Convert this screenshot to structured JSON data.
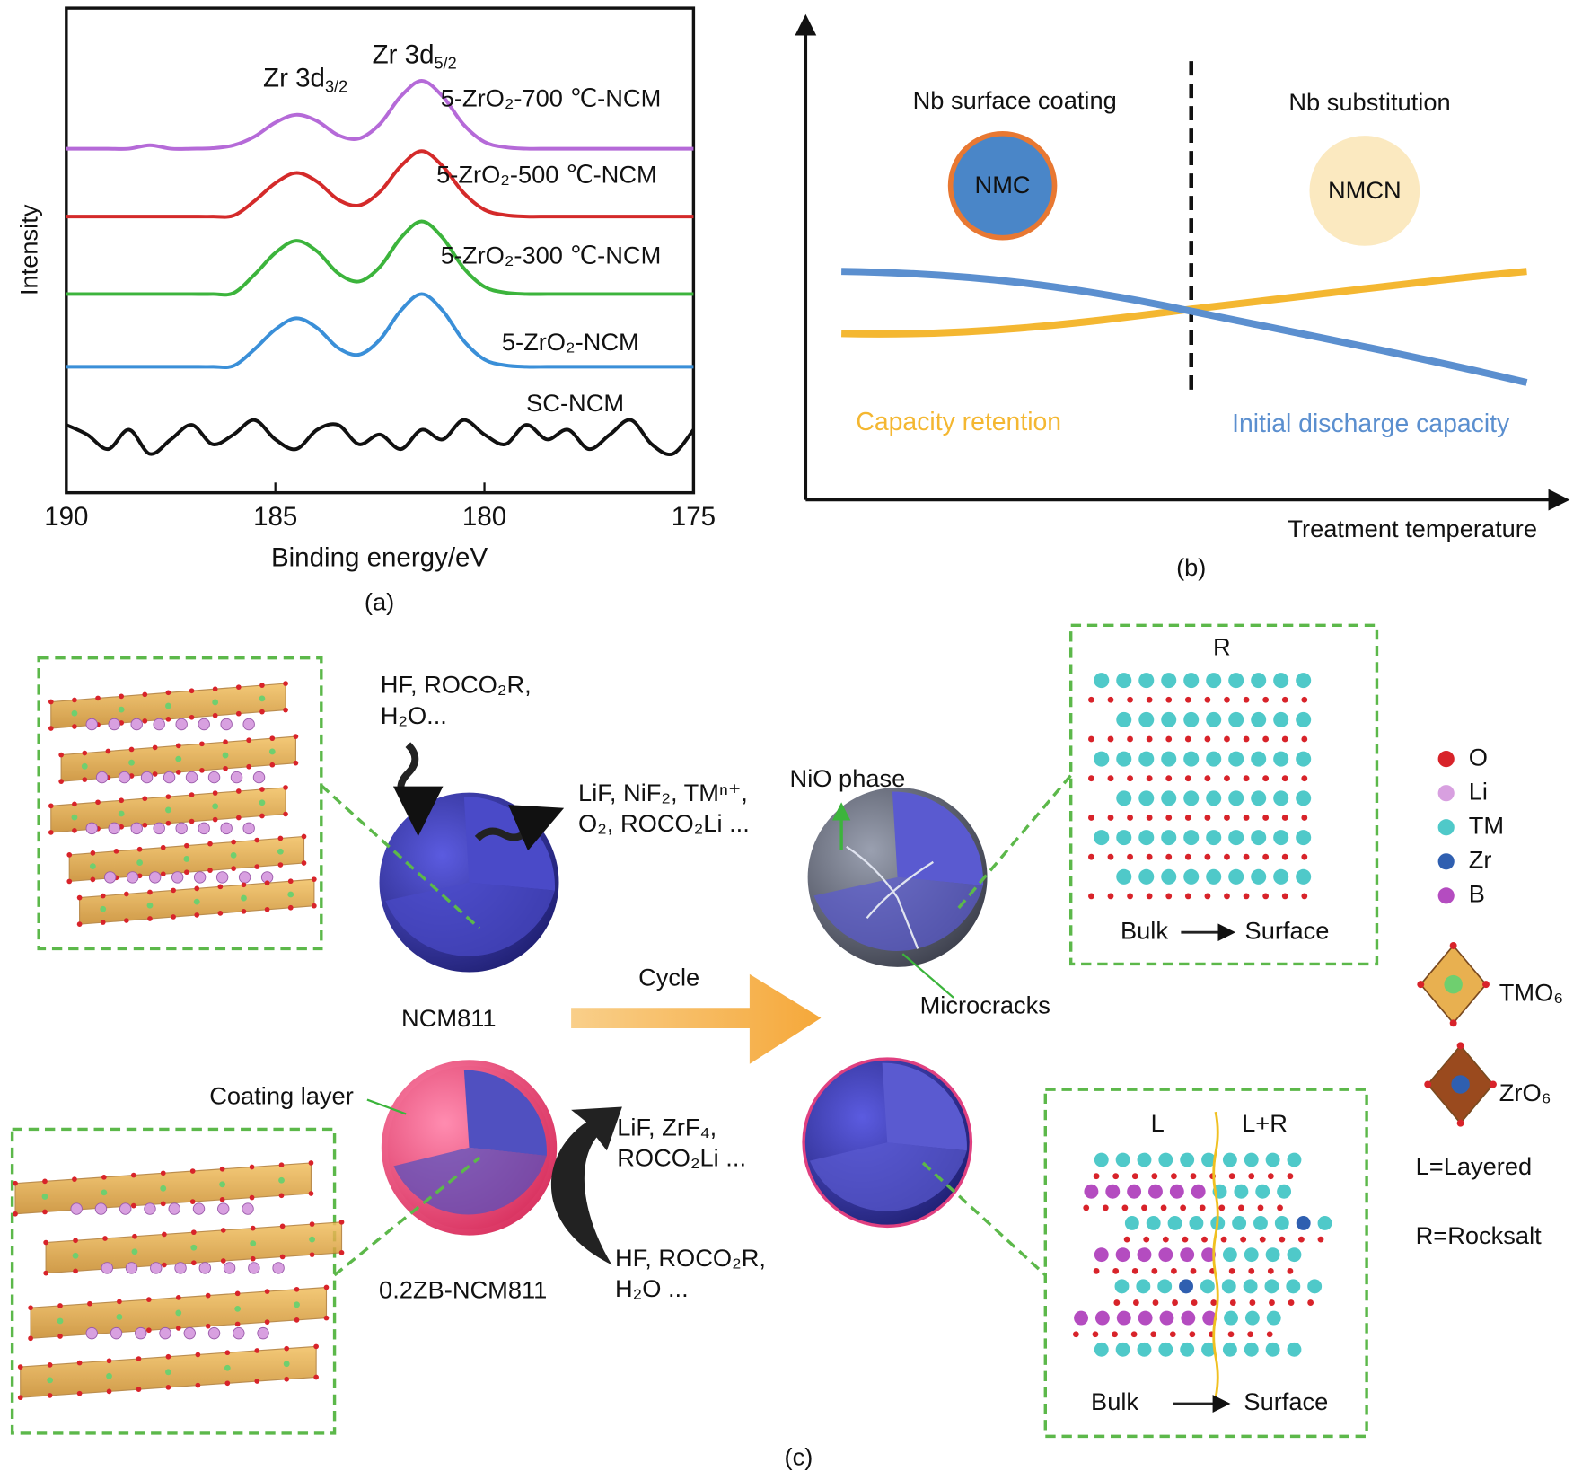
{
  "chart_data": {
    "type": "line",
    "x_label": "Binding energy/eV",
    "y_label": "Intensity",
    "caption": "(a)",
    "annotations": [
      {
        "text": "Zr 3d",
        "sub": "3/2"
      },
      {
        "text": "Zr 3d",
        "sub": "5/2"
      }
    ],
    "x": [
      190,
      189.5,
      189,
      188.5,
      188,
      187.5,
      187,
      186.5,
      186,
      185.5,
      185,
      184.5,
      184,
      183.5,
      183,
      182.5,
      182,
      181.5,
      181,
      180.5,
      180,
      179.5,
      179,
      178.5,
      178,
      177.5,
      177,
      176.5,
      176,
      175.5,
      175
    ],
    "xlim": [
      190,
      175
    ],
    "xticks": [
      190,
      185,
      180,
      175
    ],
    "ylim": [
      0,
      100
    ],
    "series": [
      {
        "name": "5-ZrO₂-700 ℃-NCM",
        "color": "#b56ad8",
        "values": [
          71,
          71,
          71,
          71,
          71.7,
          71,
          71,
          71.1,
          71.7,
          73.5,
          76.4,
          78,
          76.7,
          73.8,
          73.1,
          76.1,
          81.8,
          85,
          81.8,
          76,
          72.4,
          71.3,
          71,
          71,
          71,
          71,
          71,
          71,
          71,
          71,
          71
        ]
      },
      {
        "name": "5-ZrO₂-500 ℃-NCM",
        "color": "#d42a2a",
        "values": [
          57,
          57,
          57,
          57,
          57,
          57,
          57,
          57,
          57.2,
          60.2,
          63.9,
          66,
          64.2,
          60.5,
          59.3,
          62.1,
          67.4,
          70.5,
          67.4,
          61.9,
          58.4,
          57.3,
          57,
          57,
          57,
          57,
          57,
          57,
          57,
          57,
          57
        ]
      },
      {
        "name": "5-ZrO₂-300 ℃-NCM",
        "color": "#3cb43c",
        "values": [
          41,
          41,
          41,
          41,
          41,
          41,
          41,
          41,
          41.2,
          45,
          49.5,
          52,
          49.8,
          45.3,
          43.6,
          46.6,
          52.6,
          56,
          52.6,
          46.4,
          42.5,
          41.3,
          41,
          41,
          41,
          41,
          41,
          41,
          41,
          41,
          41
        ]
      },
      {
        "name": "5-ZrO₂-NCM",
        "color": "#3a8fd8",
        "values": [
          26,
          26,
          26,
          26,
          26,
          26,
          26,
          26,
          26.2,
          29.6,
          33.7,
          36,
          34,
          29.9,
          28.5,
          31.6,
          37.6,
          41,
          37.6,
          31.4,
          27.5,
          26.3,
          26,
          26,
          26,
          26,
          26,
          26,
          26,
          26,
          26
        ]
      },
      {
        "name": "SC-NCM",
        "color": "#111111",
        "values": [
          14,
          12,
          9,
          13,
          8,
          11,
          14,
          10,
          12,
          15,
          11,
          9,
          13,
          14,
          10,
          12,
          9,
          13,
          11,
          15,
          12,
          10,
          14,
          11,
          13,
          9,
          12,
          15,
          10,
          8,
          13
        ]
      }
    ]
  },
  "panel_b": {
    "caption": "(b)",
    "x_label": "Treatment temperature",
    "left_title": "Nb surface coating",
    "right_title": "Nb substitution",
    "left_particle": "NMC",
    "right_particle": "NMCN",
    "curves": [
      {
        "name": "Capacity retention",
        "color": "#f4b731"
      },
      {
        "name": "Initial discharge capacity",
        "color": "#5b8fcf"
      }
    ]
  },
  "panel_c": {
    "caption": "(c)",
    "reactants_top": [
      "HF, ROCO₂R,",
      "H₂O..."
    ],
    "products_top": [
      "LiF, NiF₂, TMⁿ⁺,",
      "O₂, ROCO₂Li ..."
    ],
    "nio": "NiO phase",
    "particle_top": "NCM811",
    "cycle": "Cycle",
    "microcracks": "Microcracks",
    "coating": "Coating layer",
    "particle_bottom": "0.2ZB-NCM811",
    "products_bottom": [
      "LiF, ZrF₄,",
      "ROCO₂Li ..."
    ],
    "reactants_bottom": [
      "HF,  ROCO₂R,",
      "H₂O ..."
    ],
    "box_top": {
      "title": "R",
      "from": "Bulk",
      "to": "Surface"
    },
    "box_bottom": {
      "left": "L",
      "right": "L+R",
      "from": "Bulk",
      "to": "Surface"
    },
    "legend": [
      {
        "name": "O",
        "color": "#d8232a"
      },
      {
        "name": "Li",
        "color": "#d8a0e0"
      },
      {
        "name": "TM",
        "color": "#4fc9c9"
      },
      {
        "name": "Zr",
        "color": "#2f5fb0"
      },
      {
        "name": "B",
        "color": "#b44cc0"
      }
    ],
    "polyhedra": [
      {
        "name": "TMO₆",
        "color": "#e8b050"
      },
      {
        "name": "ZrO₆",
        "color": "#9a4a1e"
      }
    ],
    "notes": [
      "L=Layered",
      "R=Rocksalt"
    ]
  }
}
